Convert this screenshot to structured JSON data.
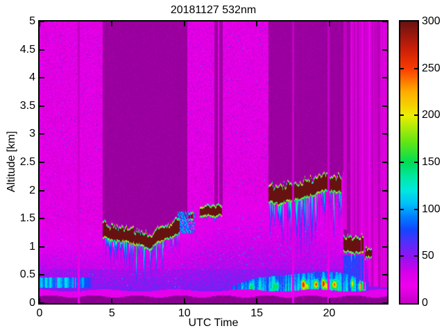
{
  "chart_data": {
    "type": "heatmap",
    "title": "20181127 532nm",
    "xlabel": "UTC Time",
    "ylabel": "Altitude [km]",
    "x_range": [
      0,
      24
    ],
    "x_ticks": [
      0,
      5,
      10,
      15,
      20
    ],
    "y_range": [
      0,
      5
    ],
    "y_ticks": [
      0,
      0.5,
      1,
      1.5,
      2,
      2.5,
      3,
      3.5,
      4,
      4.5,
      5
    ],
    "grid": false,
    "legend": "colorbar-right",
    "description": "Lidar attenuated backscatter curtain plot (532 nm) for 2018-11-27. Magenta/violet background (low signal), blue boundary layer below ~1.5 km, saturated dark-red cloud layers near 1.1 km (04:30-09:40 UTC), 1.6 km (10:20-12:40), 1.9-2.1 km (15:50-20:50) and 0.9-1.1 km (21:00-23:00) with cyan/green virga beneath, dark attenuated columns above clouds, bright magenta data-gap stripes, convective aerosol plumes with red cores near the surface 13-22.5 UTC, a bright pink near-range fringe at ~0.15 km and a dark lowest bin band.",
    "colorbar": {
      "range": [
        0,
        300
      ],
      "ticks": [
        0,
        50,
        100,
        150,
        200,
        250,
        300
      ],
      "colormap_stops": [
        [
          -45,
          "#6e007d"
        ],
        [
          -12,
          "#96009b"
        ],
        [
          0,
          "#c400c4"
        ],
        [
          18,
          "#f000f0"
        ],
        [
          32,
          "#d800ea"
        ],
        [
          48,
          "#9612f0"
        ],
        [
          63,
          "#5a2cfa"
        ],
        [
          78,
          "#1446ff"
        ],
        [
          92,
          "#0080ff"
        ],
        [
          106,
          "#00c0fa"
        ],
        [
          120,
          "#00e8e0"
        ],
        [
          135,
          "#00e8a0"
        ],
        [
          150,
          "#00dc55"
        ],
        [
          172,
          "#64e614"
        ],
        [
          200,
          "#eeee00"
        ],
        [
          226,
          "#ffaa00"
        ],
        [
          250,
          "#fa3c00"
        ],
        [
          272,
          "#c81e08"
        ],
        [
          300,
          "#6a1212"
        ],
        [
          420,
          "#621010"
        ]
      ]
    },
    "features": {
      "background": {
        "high_alt_value": 14,
        "high_alt_noise": 12,
        "attenuated_value": -8,
        "violet_top_km": [
          [
            0,
            1.45
          ],
          [
            9,
            1.4
          ],
          [
            10.5,
            1.6
          ],
          [
            12.5,
            2.0
          ],
          [
            16,
            2.05
          ],
          [
            19,
            1.9
          ],
          [
            21,
            1.6
          ],
          [
            22.6,
            1.35
          ],
          [
            24,
            1.15
          ]
        ],
        "surface_gradient_boost": 40
      },
      "clouds": [
        {
          "name": "cloud-A",
          "t0": 4.35,
          "t1": 9.7,
          "thickness_km": 0.2,
          "attenuates": true,
          "atten_extend_h": 0.5,
          "base_km": [
            [
              4.35,
              1.2
            ],
            [
              5.0,
              1.13
            ],
            [
              6.0,
              1.1
            ],
            [
              7.0,
              1.03
            ],
            [
              7.6,
              0.97
            ],
            [
              8.1,
              1.08
            ],
            [
              8.8,
              1.15
            ],
            [
              9.3,
              1.2
            ],
            [
              9.7,
              1.25
            ]
          ],
          "virga": {
            "density": 0.45,
            "max_len_km": 0.45,
            "deep_center_t": 7.3,
            "deep_scale": 1.7
          }
        },
        {
          "name": "cloud-dot-1",
          "t0": 10.28,
          "t1": 10.4,
          "thickness_km": 0.07,
          "attenuates": false,
          "base_km": [
            [
              10.28,
              1.52
            ],
            [
              10.4,
              1.52
            ]
          ]
        },
        {
          "name": "cloud-dot-2",
          "t0": 10.46,
          "t1": 10.58,
          "thickness_km": 0.07,
          "attenuates": false,
          "base_km": [
            [
              10.46,
              1.52
            ],
            [
              10.58,
              1.52
            ]
          ]
        },
        {
          "name": "cloud-B",
          "t0": 11.05,
          "t1": 12.6,
          "thickness_km": 0.13,
          "attenuates": false,
          "base_km": [
            [
              11.05,
              1.55
            ],
            [
              12.6,
              1.58
            ]
          ],
          "virga": {
            "density": 0.15,
            "max_len_km": 0.12
          }
        },
        {
          "name": "cloud-C",
          "t0": 15.8,
          "t1": 20.85,
          "thickness_km": 0.24,
          "attenuates": true,
          "atten_extend_h": 0.2,
          "base_km": [
            [
              15.8,
              1.82
            ],
            [
              16.5,
              1.78
            ],
            [
              17.5,
              1.85
            ],
            [
              18.5,
              1.9
            ],
            [
              19.5,
              2.0
            ],
            [
              20.85,
              2.0
            ]
          ],
          "virga": {
            "density": 0.55,
            "max_len_km": 0.8,
            "deep_center_t": 18.8,
            "deep_scale": 1.5
          }
        },
        {
          "name": "cloud-D",
          "t0": 21.0,
          "t1": 22.4,
          "thickness_km": 0.22,
          "attenuates": true,
          "atten_extend_h": 0.15,
          "base_km": [
            [
              21.0,
              0.95
            ],
            [
              21.7,
              0.9
            ],
            [
              22.4,
              0.95
            ]
          ],
          "virga": {
            "density": 0.3,
            "max_len_km": 0.3
          }
        },
        {
          "name": "cloud-E",
          "t0": 22.45,
          "t1": 22.95,
          "thickness_km": 0.12,
          "attenuates": false,
          "base_km": [
            [
              22.45,
              0.82
            ],
            [
              22.95,
              0.85
            ]
          ]
        }
      ],
      "gaps": [
        {
          "t": 2.7,
          "w": 0.12,
          "zmin": 0
        },
        {
          "t": 17.52,
          "w": 0.16,
          "zmin": 0
        },
        {
          "t": 19.95,
          "w": 0.12,
          "zmin": 0
        },
        {
          "t": 21.1,
          "w": 0.22,
          "zmin": 1.3
        },
        {
          "t": 22.2,
          "w": 0.06,
          "zmin": 0.25
        },
        {
          "t": 22.42,
          "w": 0.06,
          "zmin": 0.25
        },
        {
          "t": 23.25,
          "w": 0.3,
          "zmin": 0.3
        }
      ],
      "attenuation_stripes": [
        {
          "t0": 12.05,
          "t1": 12.3,
          "zmin": 1.75
        },
        {
          "t0": 12.4,
          "t1": 12.65,
          "zmin": 1.75
        }
      ],
      "striped_region": {
        "t0": 21.3,
        "t1": 24,
        "zmin_km": [
          [
            21.3,
            1.2
          ],
          [
            22.55,
            1.2
          ],
          [
            22.75,
            0.3
          ],
          [
            24,
            0.28
          ]
        ],
        "bright_value": 16,
        "mid_value": 4,
        "dark_value": -10
      },
      "boundary_layer": {
        "morning_layer": {
          "t0": 0,
          "t1": 4.4,
          "z0": 0.27,
          "z1": 0.45,
          "value": 72,
          "fade": [
            [
              0,
              1
            ],
            [
              2.5,
              1
            ],
            [
              3.5,
              0.55
            ],
            [
              4.4,
              0
            ]
          ]
        },
        "remnant_patch": {
          "t0": 9.55,
          "t1": 10.75,
          "z0": 1.25,
          "z1": 1.62,
          "value": 65
        },
        "below_cloud_fill": {
          "t0": 21.0,
          "t1": 22.5,
          "z0": 0.35,
          "z1": 0.85,
          "value": 60
        },
        "afternoon_blobs": {
          "t0": 13.2,
          "t1": 22.6,
          "base_value": 50,
          "z_top_km": [
            [
              13.2,
              0.3
            ],
            [
              15,
              0.45
            ],
            [
              17,
              0.5
            ],
            [
              19,
              0.55
            ],
            [
              20.5,
              0.55
            ],
            [
              21.5,
              0.5
            ],
            [
              22.6,
              0.35
            ]
          ],
          "hotspots": [
            [
              18.2,
              0.33,
              150
            ],
            [
              18.45,
              0.3,
              110
            ],
            [
              19.1,
              0.33,
              195
            ],
            [
              19.6,
              0.35,
              160
            ],
            [
              19.85,
              0.3,
              120
            ],
            [
              20.35,
              0.33,
              185
            ],
            [
              16.4,
              0.3,
              70
            ],
            [
              14.6,
              0.28,
              55
            ],
            [
              21.6,
              0.35,
              95
            ],
            [
              22.15,
              0.3,
              115
            ]
          ]
        }
      },
      "surface": {
        "pink_fringe": {
          "z0": 0.12,
          "z1": 0.225,
          "value": 20
        },
        "dark_band": {
          "z_top": 0.12,
          "value": -16
        }
      }
    }
  }
}
